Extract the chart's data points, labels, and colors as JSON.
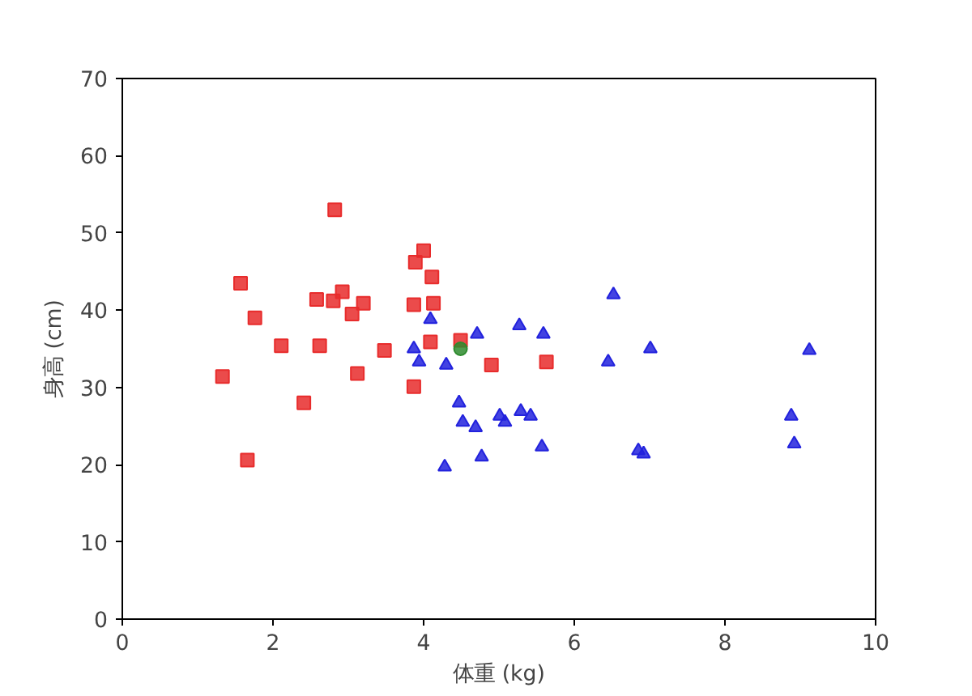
{
  "chart_data": {
    "type": "scatter",
    "xlabel": "体重 (kg)",
    "ylabel": "身高 (cm)",
    "xlim": [
      0,
      10
    ],
    "ylim": [
      0,
      70
    ],
    "xticks": [
      0,
      2,
      4,
      6,
      8,
      10
    ],
    "yticks": [
      0,
      10,
      20,
      30,
      40,
      50,
      60,
      70
    ],
    "grid": false,
    "series": [
      {
        "color": "#e82c2c",
        "marker": "square",
        "x": [
          1.33,
          1.57,
          1.66,
          1.76,
          2.11,
          2.41,
          2.58,
          2.62,
          2.82,
          2.8,
          2.92,
          3.05,
          3.12,
          3.2,
          3.48,
          3.87,
          3.87,
          3.89,
          4.0,
          4.11,
          4.13,
          4.09,
          4.49,
          4.9,
          5.63
        ],
        "values": [
          31.4,
          43.5,
          20.6,
          39.0,
          35.4,
          28.0,
          41.4,
          35.4,
          53.0,
          41.2,
          42.4,
          39.5,
          31.8,
          40.9,
          34.8,
          30.1,
          40.7,
          46.2,
          47.7,
          44.3,
          40.9,
          35.9,
          36.1,
          32.9,
          33.3
        ]
      },
      {
        "color": "#2222dd",
        "marker": "triangle",
        "x": [
          3.87,
          3.94,
          4.09,
          4.3,
          4.71,
          4.47,
          4.52,
          4.28,
          4.69,
          4.77,
          5.01,
          5.08,
          5.27,
          5.29,
          5.42,
          5.57,
          5.59,
          6.45,
          6.52,
          6.85,
          6.92,
          7.01,
          8.88,
          8.92,
          9.12
        ],
        "values": [
          35.0,
          33.3,
          38.8,
          32.9,
          36.9,
          28.0,
          25.5,
          19.7,
          24.8,
          21.0,
          26.3,
          25.5,
          38.0,
          26.9,
          26.3,
          22.3,
          36.9,
          33.3,
          42.0,
          21.8,
          21.4,
          35.0,
          26.3,
          22.7,
          34.8
        ]
      },
      {
        "color": "#2e8b2e",
        "marker": "circle",
        "x": [
          4.49
        ],
        "values": [
          35.0
        ]
      }
    ]
  }
}
